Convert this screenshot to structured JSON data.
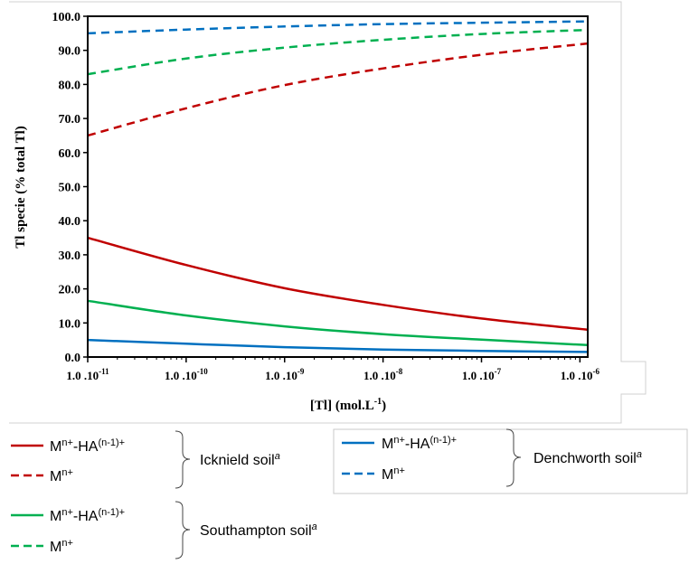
{
  "chart_data": {
    "type": "line",
    "title": "",
    "xlabel": "[Tl] (mol.L",
    "xlabel_sup": "-1",
    "xlabel_end": ")",
    "ylabel": "Tl specie (% total Tl)",
    "x_scale": "log",
    "xlim": [
      1e-11,
      1.2e-06
    ],
    "ylim": [
      0,
      100
    ],
    "grid": false,
    "legend_position": "bottom",
    "x_ticks": [
      {
        "value": 1e-11,
        "base": "1.0 .10",
        "exp": "-11"
      },
      {
        "value": 1e-10,
        "base": "1.0 .10",
        "exp": "-10"
      },
      {
        "value": 1e-09,
        "base": "1.0 .10",
        "exp": "-9"
      },
      {
        "value": 1e-08,
        "base": "1.0 .10",
        "exp": "-8"
      },
      {
        "value": 1e-07,
        "base": "1.0 .10",
        "exp": "-7"
      },
      {
        "value": 1e-06,
        "base": "1.0 .10",
        "exp": "-6"
      }
    ],
    "y_ticks": [
      {
        "value": 0,
        "label": "0.0"
      },
      {
        "value": 10,
        "label": "10.0"
      },
      {
        "value": 20,
        "label": "20.0"
      },
      {
        "value": 30,
        "label": "30.0"
      },
      {
        "value": 40,
        "label": "40.0"
      },
      {
        "value": 50,
        "label": "50.0"
      },
      {
        "value": 60,
        "label": "60.0"
      },
      {
        "value": 70,
        "label": "70.0"
      },
      {
        "value": 80,
        "label": "80.0"
      },
      {
        "value": 90,
        "label": "90.0"
      },
      {
        "value": 100,
        "label": "100.0"
      }
    ],
    "series": [
      {
        "id": "icknield-complex",
        "color": "#c00000",
        "dash": false,
        "x": [
          1e-11,
          1e-10,
          1e-09,
          1e-08,
          1e-07,
          1.2e-06
        ],
        "y": [
          35.0,
          27.0,
          20.2,
          15.3,
          11.3,
          8.0
        ]
      },
      {
        "id": "icknield-free",
        "color": "#c00000",
        "dash": true,
        "x": [
          1e-11,
          1e-10,
          1e-09,
          1e-08,
          1e-07,
          1.2e-06
        ],
        "y": [
          65.0,
          73.0,
          79.8,
          84.7,
          88.7,
          92.0
        ]
      },
      {
        "id": "southampton-complex",
        "color": "#00b050",
        "dash": false,
        "x": [
          1e-11,
          1e-10,
          1e-09,
          1e-08,
          1e-07,
          1.2e-06
        ],
        "y": [
          16.5,
          12.2,
          9.0,
          6.7,
          5.1,
          3.5
        ]
      },
      {
        "id": "southampton-free",
        "color": "#00b050",
        "dash": true,
        "x": [
          1e-11,
          1e-10,
          1e-09,
          1e-08,
          1e-07,
          1.2e-06
        ],
        "y": [
          83.0,
          87.6,
          90.8,
          93.1,
          94.8,
          96.0
        ]
      },
      {
        "id": "denchworth-complex",
        "color": "#0070c0",
        "dash": false,
        "x": [
          1e-11,
          1e-10,
          1e-09,
          1e-08,
          1e-07,
          1.2e-06
        ],
        "y": [
          5.0,
          3.9,
          2.9,
          2.2,
          1.8,
          1.5
        ]
      },
      {
        "id": "denchworth-free",
        "color": "#0070c0",
        "dash": true,
        "x": [
          1e-11,
          1e-10,
          1e-09,
          1e-08,
          1e-07,
          1.2e-06
        ],
        "y": [
          95.0,
          96.1,
          97.0,
          97.7,
          98.1,
          98.5
        ]
      }
    ]
  },
  "legend": {
    "complex_label": {
      "base": "M",
      "sup1": "n+",
      "mid": "-HA",
      "sup2": "(n-1)+"
    },
    "free_label": {
      "base": "M",
      "sup1": "n+"
    },
    "groups": [
      {
        "soil": "Icknield soil",
        "superscript": "a",
        "color": "#c00000"
      },
      {
        "soil": "Denchworth soil",
        "superscript": "a",
        "color": "#0070c0"
      },
      {
        "soil": "Southampton soil",
        "superscript": "a",
        "color": "#00b050"
      }
    ]
  }
}
